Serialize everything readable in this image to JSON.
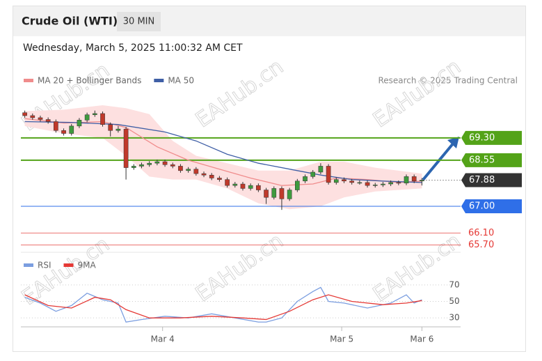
{
  "header": {
    "title": "Crude Oil (WTI)",
    "timeframe": "30 MIN",
    "date": "Wednesday, March 5, 2025 11:00:32 AM CET",
    "credit": "Research © 2025 Trading Central"
  },
  "watermark": "EAHub.cn",
  "chart_data": [
    {
      "type": "candlestick",
      "xlim": [
        -0.5,
        51.5
      ],
      "ylim": [
        65.5,
        70.4
      ],
      "up_color": "#3e9a3e",
      "down_color": "#c0392b",
      "open": [
        70.15,
        70.05,
        69.98,
        69.92,
        69.85,
        69.55,
        69.45,
        69.7,
        69.9,
        70.08,
        70.12,
        69.75,
        69.55,
        69.6,
        68.3,
        68.35,
        68.4,
        68.45,
        68.5,
        68.4,
        68.35,
        68.2,
        68.25,
        68.1,
        68.05,
        67.95,
        67.9,
        67.7,
        67.75,
        67.6,
        67.7,
        67.55,
        67.3,
        67.6,
        67.25,
        67.55,
        67.85,
        68.0,
        68.15,
        68.35,
        67.8,
        67.9,
        67.85,
        67.8,
        67.8,
        67.7,
        67.72,
        67.75,
        67.8,
        67.78,
        68.0,
        67.85
      ],
      "high": [
        70.22,
        70.12,
        70.05,
        69.99,
        69.92,
        69.62,
        69.77,
        69.97,
        70.15,
        70.22,
        70.19,
        69.82,
        69.7,
        69.67,
        68.42,
        68.47,
        68.52,
        68.57,
        68.57,
        68.47,
        68.42,
        68.32,
        68.32,
        68.17,
        68.12,
        68.02,
        67.97,
        67.82,
        67.82,
        67.77,
        67.77,
        67.62,
        67.67,
        67.67,
        67.62,
        67.92,
        68.07,
        68.22,
        68.45,
        68.42,
        67.97,
        67.97,
        67.92,
        67.87,
        67.87,
        67.79,
        67.82,
        67.87,
        67.87,
        68.07,
        68.07,
        67.95
      ],
      "low": [
        69.98,
        69.91,
        69.85,
        69.78,
        69.48,
        69.38,
        69.38,
        69.63,
        69.83,
        70.01,
        69.68,
        69.35,
        69.48,
        67.9,
        68.23,
        68.28,
        68.33,
        68.38,
        68.33,
        68.28,
        68.13,
        68.13,
        68.03,
        67.98,
        67.88,
        67.83,
        67.63,
        67.63,
        67.53,
        67.53,
        67.48,
        67.08,
        67.23,
        66.88,
        67.18,
        67.48,
        67.78,
        67.93,
        68.08,
        67.73,
        67.73,
        67.78,
        67.73,
        67.73,
        67.63,
        67.63,
        67.65,
        67.68,
        67.71,
        67.71,
        67.78,
        67.7
      ],
      "close": [
        70.05,
        69.98,
        69.92,
        69.85,
        69.55,
        69.45,
        69.7,
        69.9,
        70.08,
        70.12,
        69.75,
        69.55,
        69.6,
        68.3,
        68.35,
        68.4,
        68.45,
        68.5,
        68.4,
        68.35,
        68.2,
        68.25,
        68.1,
        68.05,
        67.95,
        67.9,
        67.7,
        67.75,
        67.6,
        67.7,
        67.55,
        67.3,
        67.6,
        67.25,
        67.55,
        67.85,
        68.0,
        68.15,
        68.35,
        67.8,
        67.9,
        67.85,
        67.8,
        67.8,
        67.7,
        67.72,
        67.75,
        67.8,
        67.78,
        68.0,
        67.85,
        67.88
      ],
      "band": {
        "color": "#fde0e0",
        "x": [
          0,
          5,
          10,
          13,
          16,
          19,
          22,
          26,
          30,
          34,
          38,
          41,
          45,
          51
        ],
        "upper": [
          70.2,
          70.25,
          70.4,
          70.3,
          70.1,
          69.2,
          68.7,
          68.45,
          68.2,
          68.2,
          68.5,
          68.5,
          68.3,
          68.1
        ],
        "lower": [
          69.7,
          69.45,
          69.3,
          68.7,
          68.0,
          67.9,
          67.9,
          67.6,
          67.1,
          66.9,
          67.0,
          67.3,
          67.5,
          67.6
        ]
      },
      "series": [
        {
          "name": "MA 20 + Bollinger Bands",
          "color": "#f08c8c",
          "x": [
            0,
            5,
            10,
            13,
            17,
            21,
            25,
            29,
            33,
            37,
            40,
            44,
            48,
            51
          ],
          "values": [
            69.95,
            69.8,
            69.85,
            69.65,
            69.0,
            68.55,
            68.25,
            67.95,
            67.7,
            67.75,
            67.95,
            67.9,
            67.8,
            67.85
          ]
        },
        {
          "name": "MA 50",
          "color": "#3f5fa6",
          "x": [
            0,
            6,
            12,
            18,
            22,
            26,
            30,
            34,
            38,
            42,
            46,
            51
          ],
          "values": [
            69.85,
            69.82,
            69.75,
            69.5,
            69.2,
            68.75,
            68.45,
            68.25,
            68.05,
            67.9,
            67.85,
            67.8
          ]
        }
      ],
      "levels": [
        {
          "value": 69.3,
          "label": "69.30",
          "color": "#53a318",
          "style": "box"
        },
        {
          "value": 68.55,
          "label": "68.55",
          "color": "#53a318",
          "style": "box"
        },
        {
          "value": 67.88,
          "label": "67.88",
          "color": "#333333",
          "style": "dotted"
        },
        {
          "value": 67.0,
          "label": "67.00",
          "color": "#2f6fe8",
          "style": "box"
        },
        {
          "value": 66.1,
          "label": "66.10",
          "color": "#e53935",
          "style": "text"
        },
        {
          "value": 65.7,
          "label": "65.70",
          "color": "#e53935",
          "style": "text"
        }
      ]
    },
    {
      "type": "line",
      "xlim": [
        -0.5,
        51.5
      ],
      "ylim": [
        20,
        80
      ],
      "yticks": [
        30,
        50,
        70
      ],
      "xticks": [
        {
          "value": 17.7,
          "label": "Mar 4"
        },
        {
          "value": 40.7,
          "label": "Mar 5"
        },
        {
          "value": 51,
          "label": "Mar 6"
        }
      ],
      "series": [
        {
          "name": "RSI",
          "color": "#7b9ee0",
          "x": [
            0,
            2,
            4,
            6,
            8,
            10,
            12,
            13,
            15,
            18,
            21,
            24,
            27,
            30,
            31,
            33,
            35,
            37,
            38,
            39,
            41,
            44,
            47,
            49,
            50,
            51
          ],
          "values": [
            55,
            48,
            38,
            45,
            60,
            52,
            48,
            25,
            28,
            32,
            30,
            35,
            30,
            25,
            25,
            30,
            50,
            62,
            67,
            50,
            48,
            42,
            48,
            58,
            48,
            52
          ]
        },
        {
          "name": "9MA",
          "color": "#e53935",
          "x": [
            0,
            3,
            6,
            9,
            11,
            13,
            16,
            20,
            24,
            28,
            31,
            34,
            37,
            39,
            42,
            46,
            49,
            51
          ],
          "values": [
            58,
            45,
            42,
            55,
            52,
            40,
            30,
            30,
            32,
            30,
            28,
            38,
            52,
            58,
            50,
            46,
            48,
            51
          ]
        }
      ]
    }
  ]
}
